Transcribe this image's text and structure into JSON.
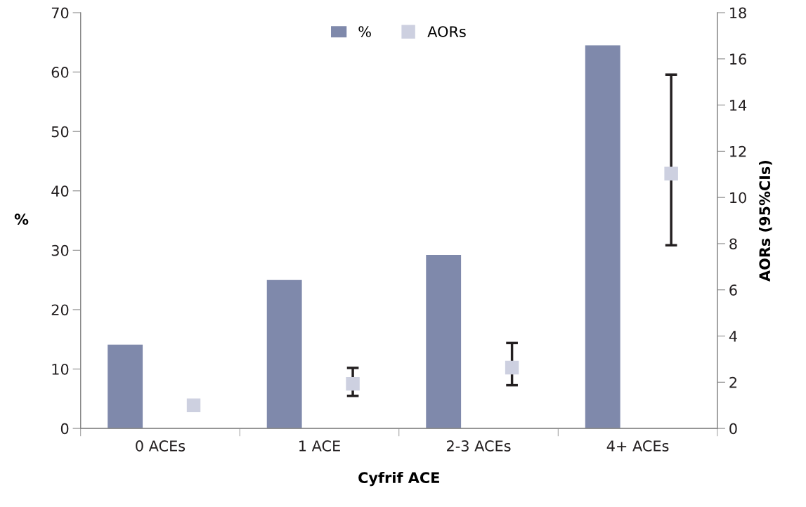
{
  "chart_data": {
    "type": "bar",
    "xlabel": "Cyfrif ACE",
    "ylabel": "%",
    "y2label": "AORs (95%CIs)",
    "categories": [
      "0 ACEs",
      "1 ACE",
      "2-3 ACEs",
      "4+ ACEs"
    ],
    "series": [
      {
        "name": "%",
        "color": "#7f89ab",
        "values": [
          14.1,
          25.0,
          29.2,
          64.5
        ]
      },
      {
        "name": "AORs",
        "type": "scatter",
        "axis": "y2",
        "color": "#cdd0e0",
        "values": [
          1.0,
          1.93,
          2.63,
          11.03
        ],
        "errors": [
          null,
          [
            1.41,
            2.62
          ],
          [
            1.87,
            3.7
          ],
          [
            7.93,
            15.32
          ]
        ]
      }
    ],
    "ylim": [
      0,
      70
    ],
    "yticks": [
      0,
      10,
      20,
      30,
      40,
      50,
      60,
      70
    ],
    "y2lim": [
      0,
      18
    ],
    "y2ticks": [
      0,
      2,
      4,
      6,
      8,
      10,
      12,
      14,
      16,
      18
    ],
    "marker": "square",
    "legend": "top",
    "grid": false
  }
}
